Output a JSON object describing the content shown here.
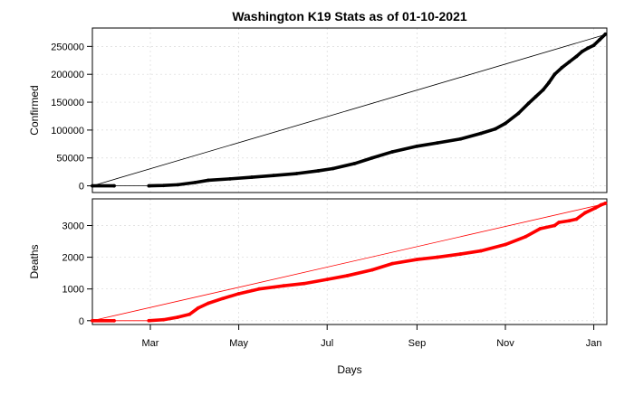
{
  "chart_data": {
    "type": "line",
    "title": "Washington K19 Stats as of 01-10-2021",
    "xlabel": "Days",
    "x_tick_labels": [
      "Mar",
      "May",
      "Jul",
      "Sep",
      "Nov",
      "Jan"
    ],
    "x_tick_dates": [
      "2020-03-01",
      "2020-05-01",
      "2020-07-01",
      "2020-09-01",
      "2020-11-01",
      "2021-01-01"
    ],
    "xlim": [
      "2020-01-21",
      "2021-01-10"
    ],
    "grid": true,
    "panels": [
      {
        "name": "confirmed",
        "ylabel": "Confirmed",
        "ylim": [
          -12000,
          283000
        ],
        "yticks": [
          0,
          50000,
          100000,
          150000,
          200000,
          250000
        ],
        "y_tick_labels": [
          "0",
          "50000",
          "100000",
          "150000",
          "200000",
          "250000"
        ],
        "color": "#000000",
        "reference_line": {
          "from": [
            "2020-01-21",
            0
          ],
          "to": [
            "2021-01-10",
            272000
          ]
        },
        "gap_line": {
          "from": [
            "2020-02-06",
            0
          ],
          "to": [
            "2020-02-29",
            0
          ]
        },
        "points": [
          [
            "2020-01-21",
            1
          ],
          [
            "2020-02-05",
            1
          ],
          [
            "2020-02-29",
            5
          ],
          [
            "2020-03-10",
            600
          ],
          [
            "2020-03-20",
            2000
          ],
          [
            "2020-04-01",
            6000
          ],
          [
            "2020-04-10",
            10000
          ],
          [
            "2020-04-25",
            12500
          ],
          [
            "2020-05-10",
            15500
          ],
          [
            "2020-05-25",
            18500
          ],
          [
            "2020-06-10",
            22000
          ],
          [
            "2020-06-25",
            27000
          ],
          [
            "2020-07-05",
            31000
          ],
          [
            "2020-07-20",
            40000
          ],
          [
            "2020-08-01",
            50000
          ],
          [
            "2020-08-15",
            61000
          ],
          [
            "2020-09-01",
            71000
          ],
          [
            "2020-09-15",
            77000
          ],
          [
            "2020-10-01",
            84000
          ],
          [
            "2020-10-15",
            94000
          ],
          [
            "2020-10-25",
            102000
          ],
          [
            "2020-11-01",
            112000
          ],
          [
            "2020-11-10",
            130000
          ],
          [
            "2020-11-17",
            148000
          ],
          [
            "2020-11-22",
            160000
          ],
          [
            "2020-11-27",
            172000
          ],
          [
            "2020-12-01",
            185000
          ],
          [
            "2020-12-05",
            200000
          ],
          [
            "2020-12-10",
            212000
          ],
          [
            "2020-12-15",
            222000
          ],
          [
            "2020-12-20",
            232000
          ],
          [
            "2020-12-24",
            241000
          ],
          [
            "2020-12-28",
            247000
          ],
          [
            "2021-01-01",
            252000
          ],
          [
            "2021-01-05",
            262000
          ],
          [
            "2021-01-09",
            272000
          ]
        ]
      },
      {
        "name": "deaths",
        "ylabel": "Deaths",
        "ylim": [
          -120,
          3840
        ],
        "yticks": [
          0,
          1000,
          2000,
          3000
        ],
        "y_tick_labels": [
          "0",
          "1000",
          "2000",
          "3000"
        ],
        "color": "#ff0000",
        "reference_line": {
          "from": [
            "2020-01-21",
            0
          ],
          "to": [
            "2021-01-10",
            3700
          ]
        },
        "gap_line": {
          "from": [
            "2020-02-06",
            0
          ],
          "to": [
            "2020-02-29",
            0
          ]
        },
        "points": [
          [
            "2020-01-21",
            0
          ],
          [
            "2020-02-05",
            0
          ],
          [
            "2020-02-29",
            1
          ],
          [
            "2020-03-10",
            30
          ],
          [
            "2020-03-20",
            110
          ],
          [
            "2020-03-28",
            200
          ],
          [
            "2020-04-03",
            400
          ],
          [
            "2020-04-10",
            550
          ],
          [
            "2020-04-20",
            700
          ],
          [
            "2020-05-01",
            850
          ],
          [
            "2020-05-15",
            1000
          ],
          [
            "2020-06-01",
            1100
          ],
          [
            "2020-06-15",
            1170
          ],
          [
            "2020-07-01",
            1300
          ],
          [
            "2020-07-15",
            1420
          ],
          [
            "2020-08-01",
            1600
          ],
          [
            "2020-08-15",
            1800
          ],
          [
            "2020-09-01",
            1930
          ],
          [
            "2020-09-15",
            2000
          ],
          [
            "2020-10-01",
            2100
          ],
          [
            "2020-10-15",
            2200
          ],
          [
            "2020-11-01",
            2400
          ],
          [
            "2020-11-15",
            2650
          ],
          [
            "2020-11-25",
            2900
          ],
          [
            "2020-12-05",
            3000
          ],
          [
            "2020-12-08",
            3100
          ],
          [
            "2020-12-15",
            3150
          ],
          [
            "2020-12-20",
            3200
          ],
          [
            "2020-12-26",
            3400
          ],
          [
            "2021-01-02",
            3550
          ],
          [
            "2021-01-06",
            3650
          ],
          [
            "2021-01-09",
            3700
          ]
        ]
      }
    ]
  }
}
